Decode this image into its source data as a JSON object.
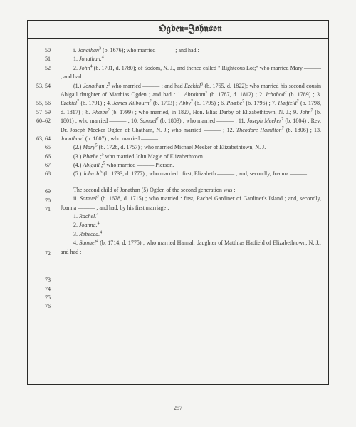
{
  "title": "Ogden=Johnson",
  "page_number": "257",
  "margins": [
    "50",
    "51",
    "52",
    "",
    "53, 54",
    "",
    "55, 56",
    "57–59",
    "60–62",
    "",
    "63, 64",
    "65",
    "66",
    "67",
    "68",
    "",
    "69",
    "70",
    "71",
    "",
    "",
    "",
    "",
    "72",
    "",
    "",
    "73",
    "74",
    "75",
    "76",
    ""
  ],
  "lines": {
    "l0": {
      "pre": "i. ",
      "it": "Jonathan",
      "sup": "3",
      "post": " (b. 1676); who married ——— ; and had :"
    },
    "l1": {
      "pre": "1. ",
      "it": "Jonathan.",
      "sup": "4",
      "post": ""
    },
    "l2": {
      "pre": "2. ",
      "it": "John",
      "sup": "4",
      "post": " (b. 1701, d. 1780); of Sodom, N. J., and thence called \" Righteous Lot;\" who married Mary ——— ; and had :"
    },
    "l3": {
      "pre": "(1.) ",
      "it": "Jonathan ;",
      "sup": "5",
      "post": " who married ——— ; and had "
    },
    "l3b": {
      "it": "Ezekiel",
      "sup": "6",
      "post": " (b. 1765, d. 1822); who married his second cousin Abigail daughter of Matthias Ogden ; and had : 1. "
    },
    "l3c": {
      "it": "Abraham",
      "sup": "7",
      "post": " (b. 1787, d. 1812) ; 2. "
    },
    "l3d": {
      "it": "Ichabod",
      "sup": "7",
      "post": " (b. 1789) ; 3. "
    },
    "l3e": {
      "it": "Ezekiel",
      "sup": "7",
      "post": " (b. 1791) ; 4. "
    },
    "l3f": {
      "it": "James Kilbourn",
      "sup": "7",
      "post": " (b. 1793) ; "
    },
    "l3g": {
      "it": "Abby",
      "sup": "7",
      "post": " (b. 1795) ; 6. "
    },
    "l3h": {
      "it": "Phœbe",
      "sup": "7",
      "post": " (b. 1796) ; 7. "
    },
    "l3i": {
      "it": "Hatfield",
      "sup": "7",
      "post": " (b. 1798, d. 1817) ; 8. "
    },
    "l3j": {
      "it": "Phœbe",
      "sup": "7",
      "post": " (b. 1799) ; who married, in 1827, Hon. Elias Darby of Elizabethtown, N. J.; 9. "
    },
    "l3k": {
      "it": "John",
      "sup": "7",
      "post": " (b. 1801) ; who married ——— ; 10. "
    },
    "l3l": {
      "it": "Samuel",
      "sup": "7",
      "post": " (b. 1803) ; who married ——— ; 11. "
    },
    "l3m": {
      "it": "Joseph Meeker",
      "sup": "7",
      "post": " (b. 1804) ; Rev. Dr. Joseph Meeker Ogden of Chatham, N. J.; who married ——— ; 12. "
    },
    "l3n": {
      "it": "Theodore Hamilton",
      "sup": "7",
      "post": " (b. 1806) ; 13. "
    },
    "l3o": {
      "it": "Jonathan",
      "sup": "7",
      "post": " (b. 1807) ; who married ———."
    },
    "l4": {
      "pre": "(2.) ",
      "it": "Mary",
      "sup": "5",
      "post": " (b. 1728, d. 1757) ; who married Michael Meeker of Elizabethtown, N. J."
    },
    "l5": {
      "pre": "(3.) ",
      "it": "Phœbe ;",
      "sup": "5",
      "post": " who married John Magie of Elizabethtown."
    },
    "l6": {
      "pre": "(4.) ",
      "it": "Abigail ;",
      "sup": "5",
      "post": " who married ——— Pierson."
    },
    "l7": {
      "pre": "(5.) ",
      "it": "John Jr",
      "sup": "5",
      "post": " (b. 1733, d. 1777) ; who married : first, Elizabeth ——— ; and, secondly, Joanna ———."
    },
    "mid": "The second child of Jonathan (5) Ogden of the second generation was :",
    "l8": {
      "pre": "ii. ",
      "it": "Samuel",
      "sup": "3",
      "post": " (b. 1678, d. 1715) ; who married : first, Rachel Gardiner of Gardiner's Island ; and, secondly, Joanna ——— ; and had, by his first marriage :"
    },
    "l9": {
      "pre": "1. ",
      "it": "Rachel.",
      "sup": "4",
      "post": ""
    },
    "l10": {
      "pre": "2. ",
      "it": "Joanna.",
      "sup": "4",
      "post": ""
    },
    "l11": {
      "pre": "3. ",
      "it": "Rebecca.",
      "sup": "4",
      "post": ""
    },
    "l12": {
      "pre": "4. ",
      "it": "Samuel",
      "sup": "4",
      "post": " (b. 1714, d. 1775) ; who married Hannah daughter of Matthias Hatfield of Elizabethtown, N. J.; and had :"
    }
  }
}
